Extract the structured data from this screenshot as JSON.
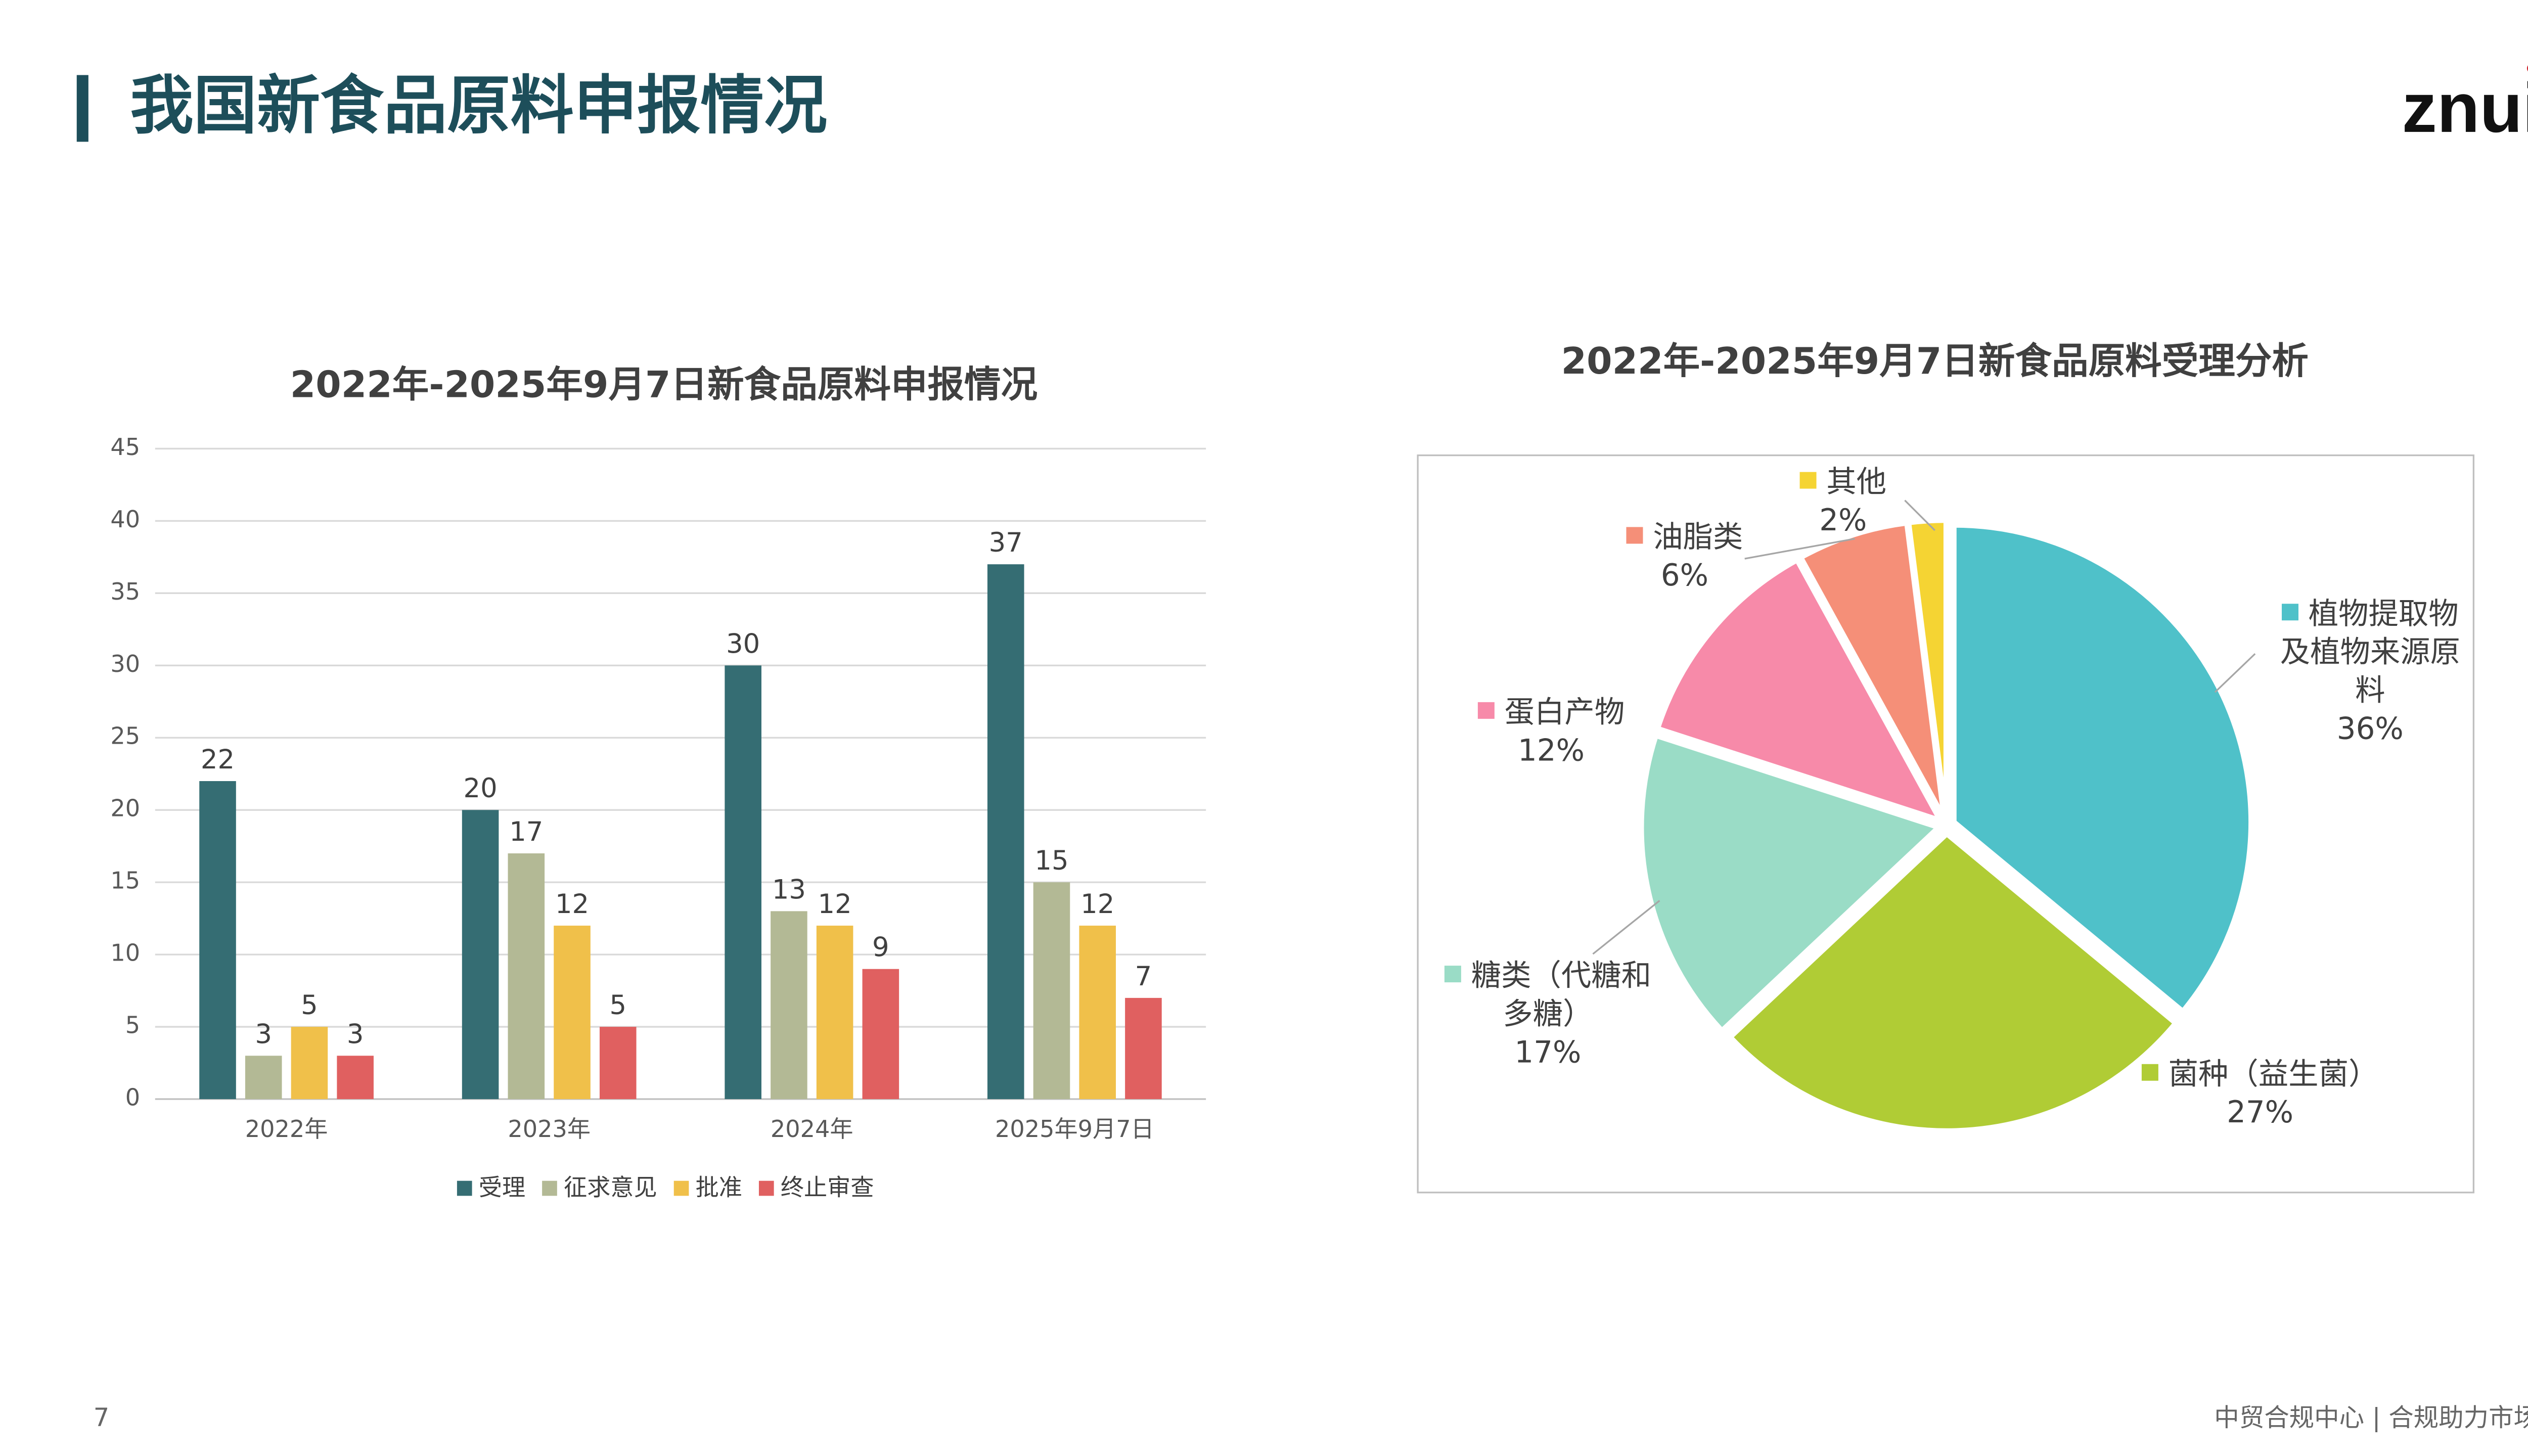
{
  "header": {
    "title": "我国新食品原料申报情况",
    "logo": "znui"
  },
  "footer": {
    "page": "7",
    "text": "中贸合规中心 | 合规助力市场"
  },
  "chart_data": [
    {
      "type": "bar",
      "title": "2022年-2025年9月7日新食品原料申报情况",
      "categories": [
        "2022年",
        "2023年",
        "2024年",
        "2025年9月7日"
      ],
      "series": [
        {
          "name": "受理",
          "color": "#356d73",
          "values": [
            22,
            20,
            30,
            37
          ]
        },
        {
          "name": "征求意见",
          "color": "#b3b995",
          "values": [
            3,
            17,
            13,
            15
          ]
        },
        {
          "name": "批准",
          "color": "#f0c04a",
          "values": [
            5,
            12,
            12,
            12
          ]
        },
        {
          "name": "终止审查",
          "color": "#e06060",
          "values": [
            3,
            5,
            9,
            7
          ]
        }
      ],
      "ylim": [
        0,
        45
      ],
      "yticks": [
        0,
        5,
        10,
        15,
        20,
        25,
        30,
        35,
        40,
        45
      ],
      "grid": true,
      "legend": "bottom"
    },
    {
      "type": "pie",
      "title": "2022年-2025年9月7日新食品原料受理分析",
      "categories": [
        "植物提取物及植物来源原料",
        "菌种（益生菌）",
        "糖类（代糖和多糖）",
        "蛋白产物",
        "油脂类",
        "其他"
      ],
      "values": [
        36,
        27,
        17,
        12,
        6,
        2
      ],
      "value_labels": [
        "36%",
        "27%",
        "17%",
        "12%",
        "6%",
        "2%"
      ],
      "colors": [
        "#4fc1c9",
        "#b0cc35",
        "#9adcc6",
        "#f78aa9",
        "#f58f78",
        "#f5d433"
      ]
    }
  ]
}
